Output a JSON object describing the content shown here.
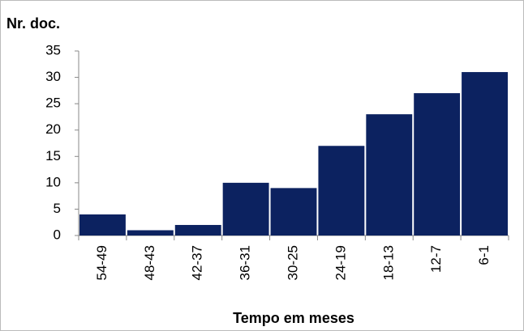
{
  "chart_data": {
    "type": "bar",
    "y_label": "Nr. doc.",
    "x_label": "Tempo em meses",
    "categories": [
      "54-49",
      "48-43",
      "42-37",
      "36-31",
      "30-25",
      "24-19",
      "18-13",
      "12-7",
      "6-1"
    ],
    "values": [
      4,
      1,
      2,
      10,
      9,
      17,
      23,
      27,
      31
    ],
    "color": "#0c2260",
    "ylim": [
      0,
      35
    ],
    "yticks": [
      0,
      5,
      10,
      15,
      20,
      25,
      30,
      35
    ],
    "grid": false
  }
}
